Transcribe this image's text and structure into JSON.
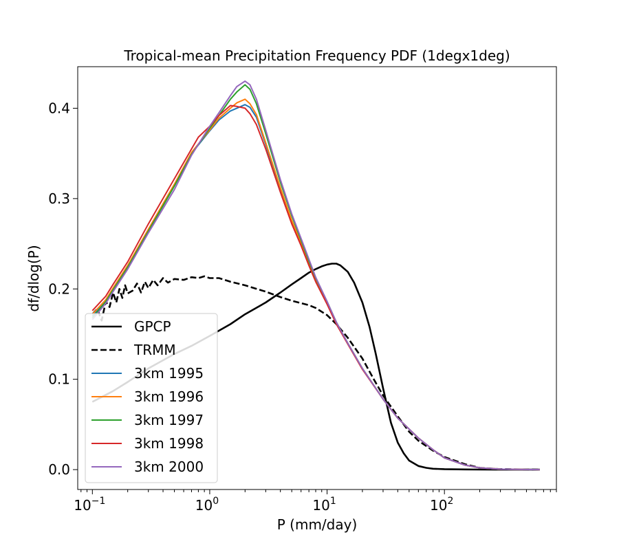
{
  "chart_data": {
    "type": "line",
    "title": "Tropical-mean Precipitation Frequency PDF (1degx1deg)",
    "xlabel": "P (mm/day)",
    "ylabel": "df/dlog(P)",
    "xscale": "log",
    "xlim": [
      0.075,
      900
    ],
    "ylim": [
      -0.022,
      0.446
    ],
    "xticks": [
      {
        "value": 0.1,
        "base": "10",
        "exp": "−1"
      },
      {
        "value": 1,
        "base": "10",
        "exp": "0"
      },
      {
        "value": 10,
        "base": "10",
        "exp": "1"
      },
      {
        "value": 100,
        "base": "10",
        "exp": "2"
      }
    ],
    "yticks": [
      {
        "value": 0.0,
        "label": "0.0"
      },
      {
        "value": 0.1,
        "label": "0.1"
      },
      {
        "value": 0.2,
        "label": "0.2"
      },
      {
        "value": 0.3,
        "label": "0.3"
      },
      {
        "value": 0.4,
        "label": "0.4"
      }
    ],
    "legend_position": "lower-left",
    "series": [
      {
        "name": "GPCP",
        "color": "#000000",
        "dash": "solid",
        "width": 2.6,
        "x": [
          0.1,
          0.15,
          0.2,
          0.3,
          0.5,
          0.7,
          1.0,
          1.5,
          2.0,
          3.0,
          4.0,
          5.0,
          6.0,
          7.0,
          8.0,
          9.0,
          10.0,
          11.0,
          12.0,
          13.0,
          15.0,
          17.0,
          20.0,
          23.0,
          26.0,
          30.0,
          35.0,
          40.0,
          45.0,
          50.0,
          60.0,
          70.0,
          80.0,
          100.0,
          150.0,
          200.0,
          300.0,
          650.0
        ],
        "y": [
          0.075,
          0.087,
          0.097,
          0.112,
          0.128,
          0.137,
          0.148,
          0.161,
          0.172,
          0.185,
          0.196,
          0.205,
          0.212,
          0.218,
          0.222,
          0.225,
          0.227,
          0.228,
          0.228,
          0.226,
          0.219,
          0.207,
          0.185,
          0.158,
          0.128,
          0.09,
          0.052,
          0.03,
          0.018,
          0.01,
          0.004,
          0.002,
          0.001,
          0.0005,
          0.0002,
          0.0001,
          0.0,
          0.0
        ]
      },
      {
        "name": "TRMM",
        "color": "#000000",
        "dash": "dashed",
        "width": 2.6,
        "x": [
          0.1,
          0.11,
          0.12,
          0.13,
          0.14,
          0.15,
          0.16,
          0.17,
          0.18,
          0.19,
          0.2,
          0.22,
          0.24,
          0.26,
          0.28,
          0.3,
          0.33,
          0.36,
          0.4,
          0.44,
          0.5,
          0.6,
          0.7,
          0.8,
          0.9,
          1.0,
          1.2,
          1.5,
          2.0,
          3.0,
          4.0,
          5.0,
          7.0,
          8.0,
          10.0,
          12.0,
          15.0,
          20.0,
          25.0,
          30.0,
          40.0,
          50.0,
          60.0,
          80.0,
          100.0,
          150.0,
          200.0,
          300.0,
          650.0
        ],
        "y": [
          0.172,
          0.178,
          0.165,
          0.186,
          0.18,
          0.196,
          0.185,
          0.2,
          0.19,
          0.204,
          0.195,
          0.198,
          0.206,
          0.196,
          0.208,
          0.201,
          0.21,
          0.204,
          0.212,
          0.207,
          0.211,
          0.21,
          0.213,
          0.212,
          0.214,
          0.212,
          0.212,
          0.208,
          0.204,
          0.197,
          0.191,
          0.187,
          0.182,
          0.179,
          0.171,
          0.161,
          0.146,
          0.123,
          0.1,
          0.082,
          0.059,
          0.042,
          0.032,
          0.021,
          0.014,
          0.006,
          0.002,
          0.0005,
          0.0
        ]
      },
      {
        "name": "3km 1995",
        "color": "#1f77b4",
        "dash": "solid",
        "width": 2,
        "x": [
          0.1,
          0.13,
          0.15,
          0.2,
          0.3,
          0.5,
          0.7,
          1.0,
          1.2,
          1.5,
          1.7,
          2.0,
          2.2,
          2.5,
          3.0,
          4.0,
          5.0,
          6.0,
          7.0,
          8.0,
          10.0,
          12.0,
          15.0,
          20.0,
          30.0,
          40.0,
          60.0,
          80.0,
          100.0,
          150.0,
          200.0,
          300.0,
          650.0
        ],
        "y": [
          0.17,
          0.187,
          0.2,
          0.225,
          0.265,
          0.315,
          0.35,
          0.375,
          0.387,
          0.397,
          0.4,
          0.404,
          0.401,
          0.39,
          0.36,
          0.31,
          0.275,
          0.25,
          0.228,
          0.21,
          0.185,
          0.163,
          0.14,
          0.112,
          0.078,
          0.057,
          0.035,
          0.022,
          0.013,
          0.005,
          0.002,
          0.0005,
          0.0
        ]
      },
      {
        "name": "3km 1996",
        "color": "#ff7f0e",
        "dash": "solid",
        "width": 2,
        "x": [
          0.1,
          0.13,
          0.15,
          0.2,
          0.3,
          0.5,
          0.7,
          1.0,
          1.2,
          1.5,
          1.7,
          2.0,
          2.2,
          2.5,
          3.0,
          4.0,
          5.0,
          6.0,
          7.0,
          8.0,
          10.0,
          12.0,
          15.0,
          20.0,
          30.0,
          40.0,
          60.0,
          80.0,
          100.0,
          150.0,
          200.0,
          300.0,
          650.0
        ],
        "y": [
          0.172,
          0.188,
          0.201,
          0.226,
          0.266,
          0.316,
          0.351,
          0.376,
          0.389,
          0.4,
          0.406,
          0.41,
          0.405,
          0.393,
          0.362,
          0.312,
          0.276,
          0.251,
          0.229,
          0.211,
          0.185,
          0.163,
          0.14,
          0.112,
          0.078,
          0.057,
          0.035,
          0.022,
          0.013,
          0.005,
          0.002,
          0.0005,
          0.0
        ]
      },
      {
        "name": "3km 1997",
        "color": "#2ca02c",
        "dash": "solid",
        "width": 2,
        "x": [
          0.1,
          0.13,
          0.15,
          0.2,
          0.3,
          0.5,
          0.7,
          1.0,
          1.2,
          1.5,
          1.7,
          2.0,
          2.2,
          2.5,
          3.0,
          4.0,
          5.0,
          6.0,
          7.0,
          8.0,
          10.0,
          12.0,
          15.0,
          20.0,
          30.0,
          40.0,
          60.0,
          80.0,
          100.0,
          150.0,
          200.0,
          300.0,
          650.0
        ],
        "y": [
          0.168,
          0.186,
          0.199,
          0.224,
          0.264,
          0.314,
          0.349,
          0.378,
          0.392,
          0.41,
          0.418,
          0.426,
          0.421,
          0.405,
          0.372,
          0.318,
          0.281,
          0.254,
          0.231,
          0.212,
          0.186,
          0.163,
          0.14,
          0.112,
          0.078,
          0.057,
          0.035,
          0.022,
          0.013,
          0.005,
          0.002,
          0.0005,
          0.0
        ]
      },
      {
        "name": "3km 1998",
        "color": "#d62728",
        "dash": "solid",
        "width": 2,
        "x": [
          0.1,
          0.13,
          0.15,
          0.2,
          0.3,
          0.5,
          0.7,
          0.8,
          1.0,
          1.2,
          1.5,
          1.7,
          2.0,
          2.2,
          2.5,
          3.0,
          4.0,
          5.0,
          6.0,
          7.0,
          8.0,
          10.0,
          12.0,
          15.0,
          20.0,
          30.0,
          40.0,
          60.0,
          80.0,
          100.0,
          150.0,
          200.0,
          300.0,
          650.0
        ],
        "y": [
          0.176,
          0.192,
          0.205,
          0.23,
          0.272,
          0.322,
          0.355,
          0.368,
          0.38,
          0.392,
          0.403,
          0.402,
          0.4,
          0.394,
          0.382,
          0.355,
          0.307,
          0.272,
          0.248,
          0.226,
          0.208,
          0.183,
          0.161,
          0.139,
          0.111,
          0.078,
          0.057,
          0.035,
          0.022,
          0.013,
          0.005,
          0.002,
          0.0005,
          0.0
        ]
      },
      {
        "name": "3km 2000",
        "color": "#9467bd",
        "dash": "solid",
        "width": 2,
        "x": [
          0.1,
          0.13,
          0.15,
          0.2,
          0.3,
          0.5,
          0.7,
          1.0,
          1.2,
          1.5,
          1.7,
          2.0,
          2.2,
          2.5,
          3.0,
          4.0,
          5.0,
          6.0,
          7.0,
          8.0,
          10.0,
          12.0,
          15.0,
          20.0,
          30.0,
          40.0,
          60.0,
          80.0,
          100.0,
          150.0,
          200.0,
          300.0,
          650.0
        ],
        "y": [
          0.166,
          0.184,
          0.197,
          0.222,
          0.262,
          0.31,
          0.348,
          0.38,
          0.395,
          0.414,
          0.424,
          0.43,
          0.426,
          0.41,
          0.376,
          0.321,
          0.283,
          0.256,
          0.233,
          0.213,
          0.186,
          0.163,
          0.14,
          0.112,
          0.078,
          0.057,
          0.035,
          0.022,
          0.013,
          0.005,
          0.002,
          0.0005,
          0.0
        ]
      },
      {
        "name": "",
        "color": "#c8c8c8",
        "dash": "solid",
        "width": 2.6,
        "in_legend": false,
        "x": [
          0.1,
          0.13,
          0.15,
          0.2,
          0.3
        ],
        "y": [
          0.075,
          0.082,
          0.087,
          0.097,
          0.112
        ]
      }
    ]
  }
}
